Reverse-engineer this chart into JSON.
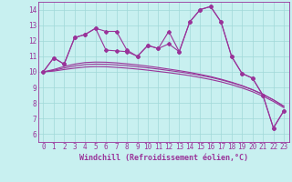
{
  "xlabel": "Windchill (Refroidissement éolien,°C)",
  "bg_color": "#c8f0f0",
  "grid_color": "#a0d8d8",
  "line_color": "#993399",
  "xlim": [
    -0.5,
    23.5
  ],
  "ylim": [
    5.5,
    14.5
  ],
  "x": [
    0,
    1,
    2,
    3,
    4,
    5,
    6,
    7,
    8,
    9,
    10,
    11,
    12,
    13,
    14,
    15,
    16,
    17,
    18,
    19,
    20,
    21,
    22,
    23
  ],
  "line1": [
    10.0,
    10.9,
    10.5,
    12.2,
    12.4,
    12.8,
    12.6,
    12.6,
    11.4,
    11.0,
    11.7,
    11.5,
    12.6,
    11.3,
    13.2,
    14.0,
    14.2,
    13.2,
    11.0,
    9.9,
    9.6,
    8.5,
    6.4,
    7.5
  ],
  "line2": [
    10.0,
    10.9,
    10.5,
    12.2,
    12.4,
    12.8,
    11.4,
    11.35,
    11.3,
    11.0,
    11.7,
    11.5,
    11.8,
    11.3,
    13.2,
    14.0,
    14.2,
    13.2,
    11.0,
    9.9,
    9.6,
    8.5,
    6.4,
    7.5
  ],
  "smooth1": [
    10.0,
    10.15,
    10.35,
    10.5,
    10.6,
    10.63,
    10.62,
    10.58,
    10.52,
    10.45,
    10.37,
    10.28,
    10.18,
    10.08,
    9.97,
    9.84,
    9.7,
    9.53,
    9.34,
    9.12,
    8.86,
    8.56,
    8.2,
    7.78
  ],
  "smooth2": [
    10.0,
    10.1,
    10.25,
    10.38,
    10.47,
    10.5,
    10.49,
    10.45,
    10.4,
    10.33,
    10.26,
    10.18,
    10.09,
    10.0,
    9.9,
    9.78,
    9.65,
    9.49,
    9.31,
    9.1,
    8.85,
    8.56,
    8.21,
    7.8
  ],
  "smooth3": [
    10.0,
    10.05,
    10.15,
    10.24,
    10.31,
    10.34,
    10.33,
    10.29,
    10.24,
    10.18,
    10.11,
    10.03,
    9.95,
    9.86,
    9.76,
    9.64,
    9.51,
    9.36,
    9.18,
    8.97,
    8.73,
    8.44,
    8.1,
    7.7
  ],
  "xticks": [
    0,
    1,
    2,
    3,
    4,
    5,
    6,
    7,
    8,
    9,
    10,
    11,
    12,
    13,
    14,
    15,
    16,
    17,
    18,
    19,
    20,
    21,
    22,
    23
  ],
  "yticks": [
    6,
    7,
    8,
    9,
    10,
    11,
    12,
    13,
    14
  ]
}
